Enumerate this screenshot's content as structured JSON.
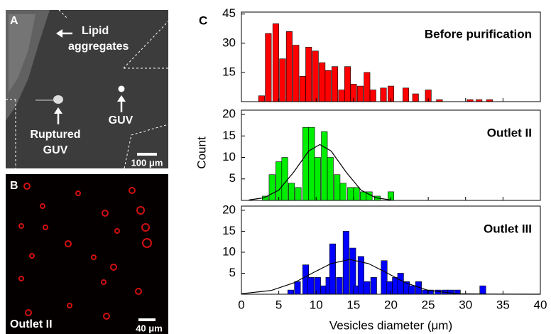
{
  "panels": {
    "a": {
      "letter": "A",
      "aggregates": [
        "Lipid",
        "aggregates"
      ],
      "ruptured": [
        "Ruptured",
        "GUV"
      ],
      "guv": "GUV",
      "scale": "100 μm"
    },
    "b": {
      "letter": "B",
      "label": "Outlet II",
      "scale": "40 μm"
    },
    "c": {
      "letter": "C"
    }
  },
  "chart_data": [
    {
      "type": "bar",
      "title": "Before purification",
      "color": "#ff0000",
      "x": [
        2.7,
        3.6,
        4.6,
        5.5,
        6.4,
        7.3,
        8.2,
        9.0,
        9.9,
        10.8,
        11.6,
        12.5,
        13.4,
        14.2,
        15.0,
        15.9,
        16.8,
        17.6,
        19.0,
        20.0,
        22.0,
        23.3,
        25.0,
        26.5,
        30.6,
        31.8,
        33.2
      ],
      "values": [
        3,
        35,
        40,
        22,
        36,
        29,
        13,
        28,
        26,
        20,
        16,
        18,
        6,
        18,
        9,
        8,
        15,
        6,
        7,
        8,
        7,
        4,
        6,
        1,
        1,
        1,
        1
      ],
      "xlim": [
        0,
        40
      ],
      "ylim": [
        0,
        46
      ],
      "yticks": [
        15,
        30,
        45
      ]
    },
    {
      "type": "bar",
      "title": "Outlet II",
      "color": "#00ee00",
      "ylabel": "Count",
      "x": [
        3.2,
        4.1,
        5.0,
        5.8,
        6.7,
        7.6,
        8.6,
        9.4,
        10.2,
        11.1,
        11.9,
        12.8,
        13.6,
        14.6,
        15.4,
        16.3,
        17.1,
        18.2,
        20.0
      ],
      "values": [
        1,
        6,
        9,
        10,
        4,
        3,
        17,
        17,
        10,
        16,
        10,
        6,
        4,
        3,
        3,
        2,
        2,
        1,
        2
      ],
      "fit": {
        "x": [
          1,
          3,
          5,
          7,
          9,
          10.5,
          12,
          14,
          16,
          18,
          20
        ],
        "values": [
          0.1,
          0.6,
          2.4,
          6.6,
          11.5,
          13,
          11.5,
          6.6,
          2.4,
          0.6,
          0.1
        ],
        "color": "#000000"
      },
      "xlim": [
        0,
        40
      ],
      "ylim": [
        0,
        21
      ],
      "yticks": [
        5,
        10,
        15,
        20
      ]
    },
    {
      "type": "bar",
      "title": "Outlet III",
      "color": "#0000ff",
      "xlabel": "Vesicles diameter (μm)",
      "x": [
        6.6,
        7.5,
        8.6,
        9.3,
        10.2,
        11.0,
        11.7,
        12.2,
        13.1,
        14.0,
        14.9,
        15.4,
        16.0,
        16.8,
        17.7,
        19.1,
        19.8,
        20.6,
        21.3,
        22.1,
        22.8,
        23.7,
        24.6,
        25.3,
        26.3,
        27.2,
        28.0,
        28.9,
        32.3
      ],
      "values": [
        1,
        3,
        7,
        4,
        4,
        2,
        4,
        12,
        4,
        15,
        11,
        2,
        9,
        3,
        4,
        8,
        3,
        4,
        5,
        3,
        2,
        3,
        1,
        1,
        1,
        1,
        1,
        1,
        2
      ],
      "fit": {
        "x": [
          0,
          4,
          7,
          10,
          12,
          14.5,
          17,
          19,
          22,
          25,
          29,
          33,
          40
        ],
        "values": [
          0.12,
          0.9,
          2.7,
          5.5,
          7.3,
          8.3,
          7.3,
          5.5,
          2.7,
          0.9,
          0.12,
          0.01,
          0
        ],
        "color": "#000000"
      },
      "xlim": [
        0,
        40
      ],
      "ylim": [
        0,
        21
      ],
      "yticks": [
        5,
        10,
        15,
        20
      ],
      "xticks": [
        0,
        5,
        10,
        15,
        20,
        25,
        30,
        35,
        40
      ]
    }
  ]
}
